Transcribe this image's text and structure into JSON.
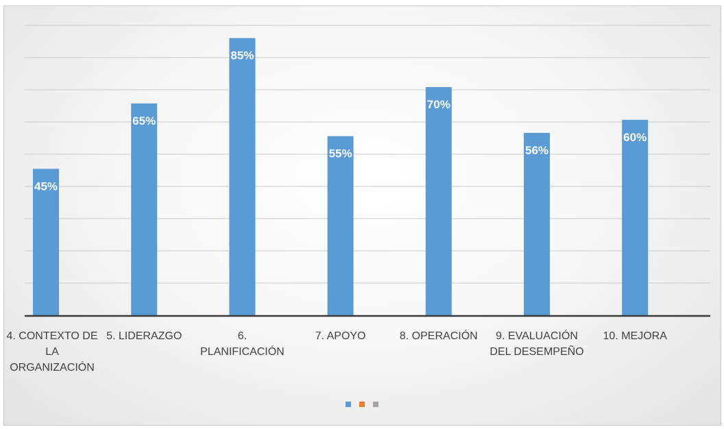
{
  "chart_data": {
    "type": "bar",
    "categories": [
      "4. CONTEXTO DE LA ORGANIZACIÓN",
      "5. LIDERAZGO",
      "6. PLANIFICACIÓN",
      "7. APOYO",
      "8. OPERACIÓN",
      "9. EVALUACIÓN DEL DESEMPEÑO",
      "10. MEJORA"
    ],
    "values": [
      45,
      65,
      85,
      55,
      70,
      56,
      60
    ],
    "data_labels": [
      "45%",
      "65%",
      "85%",
      "55%",
      "70%",
      "56%",
      "60%"
    ],
    "title": "",
    "xlabel": "",
    "ylabel": "",
    "ylim": [
      0,
      95
    ],
    "grid": true,
    "legend_placement": "bottom",
    "colors": {
      "bar": "#5b9bd5",
      "legend": [
        "#5b9bd5",
        "#ed7d31",
        "#a5a5a5"
      ]
    }
  }
}
